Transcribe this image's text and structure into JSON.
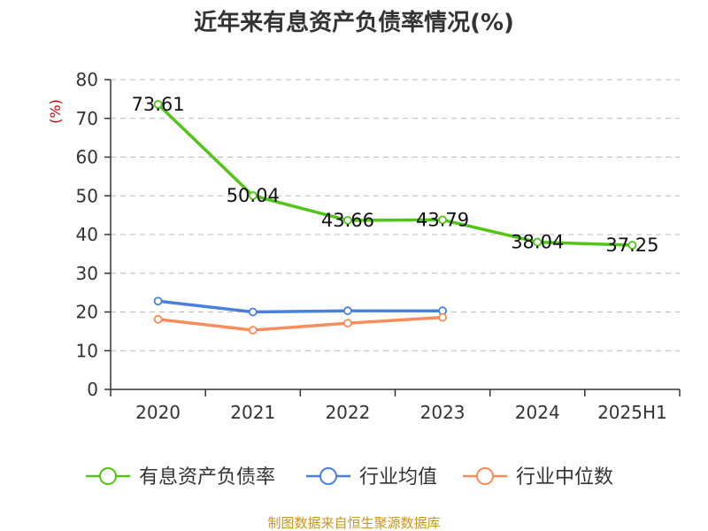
{
  "chart_data": {
    "type": "line",
    "title": "近年来有息资产负债率情况(%)",
    "ylabel": "(%)",
    "categories": [
      "2020",
      "2021",
      "2022",
      "2023",
      "2024",
      "2025H1"
    ],
    "ylim": [
      0,
      80
    ],
    "yticks": [
      0,
      10,
      20,
      30,
      40,
      50,
      60,
      70,
      80
    ],
    "grid": true,
    "legend_position": "bottom",
    "series": [
      {
        "name": "有息资产负债率",
        "color": "#52c41a",
        "values": [
          73.61,
          50.04,
          43.66,
          43.79,
          38.04,
          37.25
        ],
        "labels": [
          "73.61",
          "50.04",
          "43.66",
          "43.79",
          "38.04",
          "37.25"
        ]
      },
      {
        "name": "行业均值",
        "color": "#4a7fdc",
        "values": [
          22.8,
          20.0,
          20.3,
          20.3,
          null,
          null
        ]
      },
      {
        "name": "行业中位数",
        "color": "#f98c5a",
        "values": [
          18.1,
          15.3,
          17.1,
          18.6,
          null,
          null
        ]
      }
    ],
    "source": "制图数据来自恒生聚源数据库",
    "colors": {
      "axis": "#333333",
      "grid": "#bbbbbb",
      "ylabel": "#cc0000",
      "source": "#c8961e"
    }
  }
}
